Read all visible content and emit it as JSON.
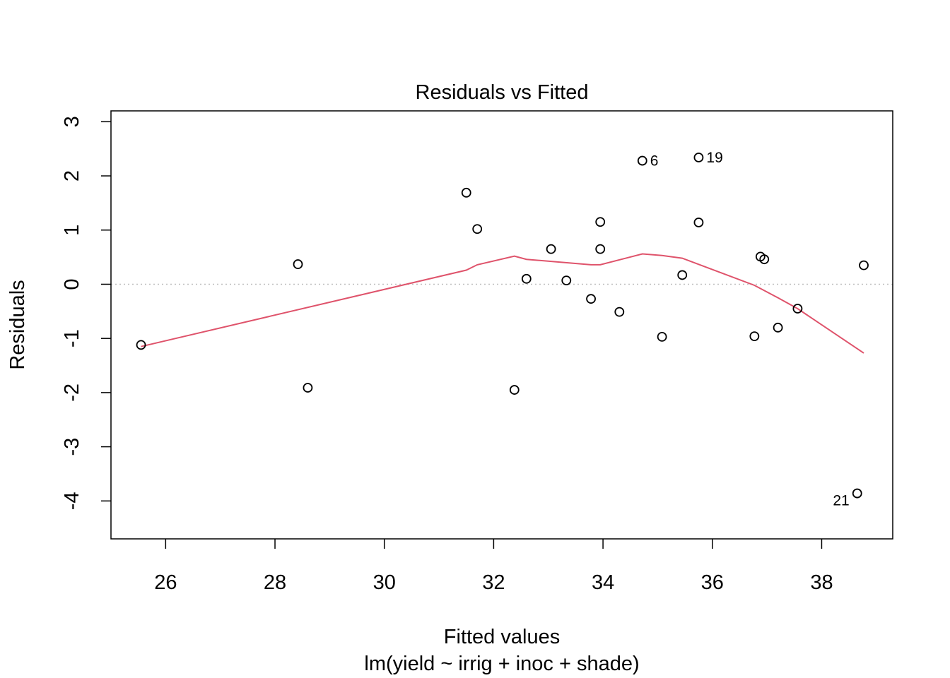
{
  "chart_data": {
    "type": "scatter",
    "title": "Residuals vs Fitted",
    "xlabel": "Fitted values",
    "subtitle": "lm(yield ~ irrig + inoc + shade)",
    "ylabel": "Residuals",
    "xlim": [
      25.0,
      39.3
    ],
    "ylim": [
      -4.7,
      3.2
    ],
    "xticks": [
      26,
      28,
      30,
      32,
      34,
      36,
      38
    ],
    "xtick_labels": [
      "26",
      "28",
      "30",
      "32",
      "34",
      "36",
      "38"
    ],
    "yticks": [
      -4,
      -3,
      -2,
      -1,
      0,
      1,
      2,
      3
    ],
    "ytick_labels": [
      "-4",
      "-3",
      "-2",
      "-1",
      "0",
      "1",
      "2",
      "3"
    ],
    "points": [
      {
        "x": 25.55,
        "y": -1.12
      },
      {
        "x": 28.42,
        "y": 0.37
      },
      {
        "x": 28.6,
        "y": -1.91
      },
      {
        "x": 31.5,
        "y": 1.69
      },
      {
        "x": 31.7,
        "y": 1.02
      },
      {
        "x": 32.38,
        "y": -1.95
      },
      {
        "x": 32.6,
        "y": 0.1
      },
      {
        "x": 33.05,
        "y": 0.65
      },
      {
        "x": 33.33,
        "y": 0.07
      },
      {
        "x": 33.78,
        "y": -0.27
      },
      {
        "x": 33.95,
        "y": 1.15
      },
      {
        "x": 33.95,
        "y": 0.65
      },
      {
        "x": 34.3,
        "y": -0.51
      },
      {
        "x": 34.72,
        "y": 2.28,
        "label": "6"
      },
      {
        "x": 35.08,
        "y": -0.97
      },
      {
        "x": 35.45,
        "y": 0.17
      },
      {
        "x": 35.75,
        "y": 2.34,
        "label": "19"
      },
      {
        "x": 35.75,
        "y": 1.14
      },
      {
        "x": 36.77,
        "y": -0.96
      },
      {
        "x": 36.88,
        "y": 0.51
      },
      {
        "x": 36.95,
        "y": 0.46
      },
      {
        "x": 37.2,
        "y": -0.8
      },
      {
        "x": 37.56,
        "y": -0.45
      },
      {
        "x": 38.65,
        "y": -3.86,
        "label": "21"
      },
      {
        "x": 38.77,
        "y": 0.35
      }
    ],
    "smoother": {
      "color": "#DF536B",
      "x": [
        25.55,
        31.5,
        31.7,
        32.38,
        32.6,
        33.78,
        33.95,
        34.72,
        35.08,
        35.45,
        36.77,
        37.2,
        37.56,
        38.77
      ],
      "y": [
        -1.15,
        0.26,
        0.36,
        0.52,
        0.46,
        0.36,
        0.36,
        0.56,
        0.53,
        0.48,
        -0.02,
        -0.25,
        -0.45,
        -1.27
      ]
    },
    "reference_line": {
      "y": 0,
      "style": "dotted",
      "color": "#BEBEBE"
    },
    "grid": false,
    "legend": "none"
  }
}
